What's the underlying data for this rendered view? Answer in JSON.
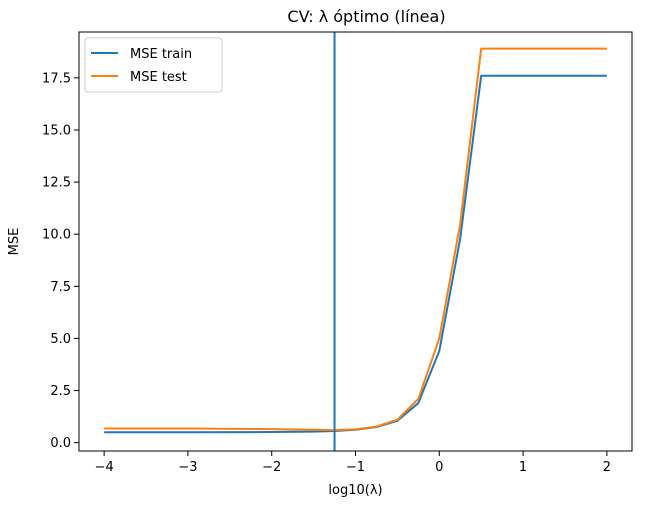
{
  "chart_data": {
    "type": "line",
    "title": "CV: λ óptimo (línea)",
    "xlabel": "log10(λ)",
    "ylabel": "MSE",
    "xlim": [
      -4.3,
      2.3
    ],
    "ylim": [
      -0.4,
      19.7
    ],
    "x_ticks": [
      -4,
      -3,
      -2,
      -1,
      0,
      1,
      2
    ],
    "x_tick_labels": [
      "−4",
      "−3",
      "−2",
      "−1",
      "0",
      "1",
      "2"
    ],
    "y_ticks": [
      0.0,
      2.5,
      5.0,
      7.5,
      10.0,
      12.5,
      15.0,
      17.5
    ],
    "y_tick_labels": [
      "0.0",
      "2.5",
      "5.0",
      "7.5",
      "10.0",
      "12.5",
      "15.0",
      "17.5"
    ],
    "grid": false,
    "legend_position": "top-left",
    "vline": {
      "x": -1.25,
      "color": "#1f77b4"
    },
    "series": [
      {
        "name": "MSE train",
        "color": "#1f77b4",
        "x": [
          -4.0,
          -3.0,
          -2.0,
          -1.5,
          -1.25,
          -1.0,
          -0.75,
          -0.5,
          -0.25,
          0.0,
          0.25,
          0.5,
          2.0
        ],
        "y": [
          0.5,
          0.5,
          0.51,
          0.53,
          0.56,
          0.62,
          0.75,
          1.05,
          1.9,
          4.4,
          9.8,
          17.6,
          17.6
        ]
      },
      {
        "name": "MSE test",
        "color": "#ff7f0e",
        "x": [
          -4.0,
          -3.0,
          -2.0,
          -1.5,
          -1.25,
          -1.0,
          -0.75,
          -0.5,
          -0.25,
          0.0,
          0.25,
          0.5,
          2.0
        ],
        "y": [
          0.68,
          0.68,
          0.65,
          0.62,
          0.6,
          0.64,
          0.77,
          1.1,
          2.1,
          5.0,
          10.5,
          18.9,
          18.9
        ]
      }
    ]
  }
}
